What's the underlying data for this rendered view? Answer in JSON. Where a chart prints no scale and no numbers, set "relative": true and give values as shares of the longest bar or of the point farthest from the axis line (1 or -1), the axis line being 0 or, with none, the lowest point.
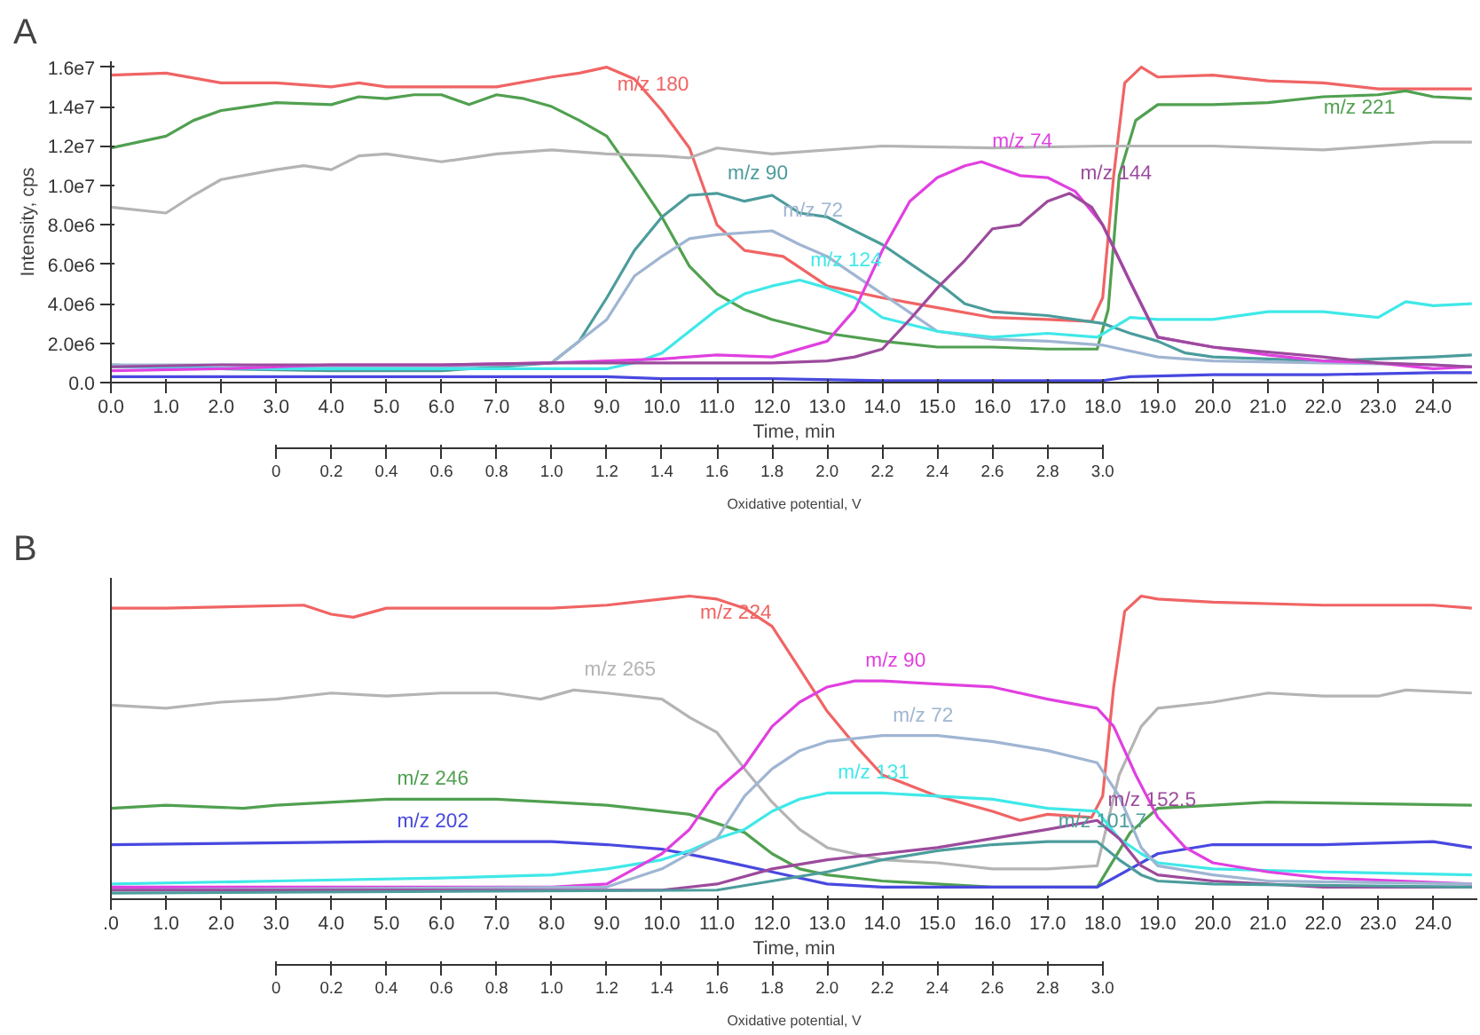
{
  "chart_data": [
    {
      "type": "line",
      "title": "A",
      "xlabel": "Time, min",
      "ylabel": "Intensity, cps",
      "x2label": "Oxidative potential, V",
      "xlim": [
        0,
        24.8
      ],
      "ylim": [
        0,
        16300000.0
      ],
      "x2lim": [
        -0.6,
        4.36
      ],
      "xticks": [
        {
          "value": 0,
          "label": "0.0"
        },
        {
          "value": 1,
          "label": "1.0"
        },
        {
          "value": 2,
          "label": "2.0"
        },
        {
          "value": 3,
          "label": "3.0"
        },
        {
          "value": 4,
          "label": "4.0"
        },
        {
          "value": 5,
          "label": "5.0"
        },
        {
          "value": 6,
          "label": "6.0"
        },
        {
          "value": 7,
          "label": "7.0"
        },
        {
          "value": 8,
          "label": "8.0"
        },
        {
          "value": 9,
          "label": "9.0"
        },
        {
          "value": 10,
          "label": "10.0"
        },
        {
          "value": 11,
          "label": "11.0"
        },
        {
          "value": 12,
          "label": "12.0"
        },
        {
          "value": 13,
          "label": "13.0"
        },
        {
          "value": 14,
          "label": "14.0"
        },
        {
          "value": 15,
          "label": "15.0"
        },
        {
          "value": 16,
          "label": "16.0"
        },
        {
          "value": 17,
          "label": "17.0"
        },
        {
          "value": 18,
          "label": "18.0"
        },
        {
          "value": 19,
          "label": "19.0"
        },
        {
          "value": 20,
          "label": "20.0"
        },
        {
          "value": 21,
          "label": "21.0"
        },
        {
          "value": 22,
          "label": "22.0"
        },
        {
          "value": 23,
          "label": "23.0"
        },
        {
          "value": 24,
          "label": "24.0"
        }
      ],
      "x2ticks": [
        0,
        0.2,
        0.4,
        0.6,
        0.8,
        {
          "value": 1,
          "label": "1.0"
        },
        1.2,
        1.4,
        1.6,
        1.8,
        {
          "value": 2,
          "label": "2.0"
        },
        2.2,
        2.4,
        2.6,
        2.8,
        {
          "value": 3,
          "label": "3.0"
        }
      ],
      "yticks": [
        {
          "value": 0,
          "label": "0.0"
        },
        {
          "value": 2000000.0,
          "label": "2.0e6"
        },
        {
          "value": 4000000.0,
          "label": "4.0e6"
        },
        {
          "value": 6000000.0,
          "label": "6.0e6"
        },
        {
          "value": 8000000.0,
          "label": "8.0e6"
        },
        {
          "value": 10000000.0,
          "label": "1.0e7"
        },
        {
          "value": 12000000.0,
          "label": "1.2e7"
        },
        {
          "value": 14000000.0,
          "label": "1.4e7"
        },
        {
          "value": 16000000.0,
          "label": "1.6e7"
        }
      ],
      "series": [
        {
          "name": "m/z 180",
          "color": "#f06464",
          "x": [
            0,
            1,
            2,
            3,
            4,
            4.5,
            5,
            6,
            7,
            8,
            8.5,
            9,
            9.5,
            10,
            10.5,
            11,
            11.5,
            12.2,
            13,
            14,
            15,
            16,
            17,
            17.8,
            18,
            18.2,
            18.4,
            18.7,
            19,
            20,
            21,
            22,
            23,
            24,
            24.7
          ],
          "values": [
            15600000.0,
            15700000.0,
            15200000.0,
            15200000.0,
            15000000.0,
            15200000.0,
            15000000.0,
            15000000.0,
            15000000.0,
            15500000.0,
            15700000.0,
            16000000.0,
            15400000.0,
            13800000.0,
            11900000.0,
            8000000.0,
            6700000.0,
            6400000.0,
            4900000.0,
            4300000.0,
            3800000.0,
            3300000.0,
            3200000.0,
            3100000.0,
            4300000.0,
            10500000.0,
            15200000.0,
            16000000.0,
            15500000.0,
            15600000.0,
            15300000.0,
            15200000.0,
            14900000.0,
            14900000.0,
            14900000.0
          ]
        },
        {
          "name": "m/z 221",
          "color": "#50a050",
          "x": [
            0,
            1,
            1.5,
            2,
            3,
            4,
            4.5,
            5,
            5.5,
            6,
            6.5,
            7,
            7.5,
            8,
            8.5,
            9,
            9.5,
            10,
            10.5,
            11,
            11.5,
            12,
            13,
            14,
            15,
            16,
            17,
            17.9,
            18.1,
            18.3,
            18.6,
            19,
            20,
            21,
            22,
            23,
            23.5,
            24,
            24.7
          ],
          "values": [
            11900000.0,
            12500000.0,
            13300000.0,
            13800000.0,
            14200000.0,
            14100000.0,
            14500000.0,
            14400000.0,
            14600000.0,
            14600000.0,
            14100000.0,
            14600000.0,
            14400000.0,
            14000000.0,
            13300000.0,
            12500000.0,
            10500000.0,
            8400000.0,
            5900000.0,
            4500000.0,
            3700000.0,
            3200000.0,
            2500000.0,
            2100000.0,
            1800000.0,
            1800000.0,
            1700000.0,
            1700000.0,
            3700000.0,
            10500000.0,
            13300000.0,
            14100000.0,
            14100000.0,
            14200000.0,
            14500000.0,
            14600000.0,
            14800000.0,
            14500000.0,
            14400000.0
          ]
        },
        {
          "color": "#b4b4b4",
          "x": [
            0,
            1,
            1.5,
            2,
            3,
            3.5,
            4,
            4.5,
            5,
            5.5,
            6,
            7,
            8,
            9,
            10,
            10.5,
            11,
            12,
            14,
            16,
            18,
            20,
            22,
            24,
            24.7
          ],
          "values": [
            8900000.0,
            8600000.0,
            9500000.0,
            10300000.0,
            10800000.0,
            11000000.0,
            10800000.0,
            11500000.0,
            11600000.0,
            11400000.0,
            11200000.0,
            11600000.0,
            11800000.0,
            11600000.0,
            11500000.0,
            11400000.0,
            11900000.0,
            11600000.0,
            12000000.0,
            11900000.0,
            12000000.0,
            12000000.0,
            11800000.0,
            12200000.0,
            12200000.0
          ]
        },
        {
          "name": "m/z 90",
          "color": "#4c9c9c",
          "x": [
            0,
            2,
            4,
            6,
            8,
            8.5,
            9,
            9.5,
            10,
            10.5,
            11,
            11.5,
            12,
            12.5,
            13,
            14,
            15,
            15.5,
            16,
            17,
            18,
            18.5,
            19,
            19.5,
            20,
            22,
            24,
            24.7
          ],
          "values": [
            900000.0,
            700000.0,
            600000.0,
            600000.0,
            1000000.0,
            2100000.0,
            4300000.0,
            6700000.0,
            8400000.0,
            9500000.0,
            9600000.0,
            9200000.0,
            9500000.0,
            8600000.0,
            8400000.0,
            7000000.0,
            5100000.0,
            4000000.0,
            3600000.0,
            3400000.0,
            3000000.0,
            2500000.0,
            2100000.0,
            1500000.0,
            1300000.0,
            1100000.0,
            1300000.0,
            1400000.0
          ]
        },
        {
          "name": "m/z 72",
          "color": "#9fb5d2",
          "x": [
            0,
            2,
            4,
            6,
            8,
            9,
            9.5,
            10,
            10.5,
            11,
            12,
            12.5,
            13,
            14,
            15,
            16,
            17,
            18,
            19,
            20,
            22,
            24,
            24.7
          ],
          "values": [
            900000.0,
            900000.0,
            800000.0,
            800000.0,
            1000000.0,
            3200000.0,
            5400000.0,
            6400000.0,
            7300000.0,
            7500000.0,
            7700000.0,
            7000000.0,
            6400000.0,
            4500000.0,
            2600000.0,
            2200000.0,
            2100000.0,
            1900000.0,
            1300000.0,
            1100000.0,
            1000000.0,
            900000.0,
            800000.0
          ]
        },
        {
          "name": "m/z 124",
          "color": "#40e8e8",
          "x": [
            0,
            3,
            6,
            9,
            9.5,
            10,
            10.5,
            11,
            11.5,
            12,
            12.5,
            13,
            13.5,
            14,
            15,
            16,
            17,
            17.9,
            18.5,
            19,
            20,
            21,
            22,
            23,
            23.5,
            24,
            24.7
          ],
          "values": [
            800000.0,
            700000.0,
            700000.0,
            700000.0,
            1000000.0,
            1500000.0,
            2600000.0,
            3700000.0,
            4500000.0,
            4900000.0,
            5200000.0,
            4800000.0,
            4300000.0,
            3300000.0,
            2600000.0,
            2300000.0,
            2500000.0,
            2300000.0,
            3300000.0,
            3200000.0,
            3200000.0,
            3600000.0,
            3600000.0,
            3300000.0,
            4100000.0,
            3900000.0,
            4000000.0
          ]
        },
        {
          "name": "m/z 74",
          "color": "#e040e0",
          "x": [
            0,
            2,
            4,
            6,
            8,
            10,
            11,
            12,
            13,
            13.5,
            14,
            14.5,
            15,
            15.5,
            15.8,
            16.5,
            17,
            17.5,
            18,
            18.5,
            19,
            20,
            21,
            22,
            23,
            24,
            24.7
          ],
          "values": [
            600000.0,
            700000.0,
            900000.0,
            900000.0,
            1000000.0,
            1200000.0,
            1400000.0,
            1300000.0,
            2100000.0,
            3700000.0,
            6700000.0,
            9200000.0,
            10400000.0,
            11000000.0,
            11200000.0,
            10500000.0,
            10400000.0,
            9700000.0,
            8000000.0,
            5100000.0,
            2300000.0,
            1800000.0,
            1400000.0,
            1100000.0,
            1000000.0,
            700000.0,
            800000.0
          ]
        },
        {
          "name": "m/z 144",
          "color": "#9c4a9c",
          "x": [
            0,
            2,
            4,
            6,
            8,
            10,
            12,
            13,
            13.5,
            14,
            14.5,
            15,
            15.5,
            16,
            16.5,
            17,
            17.4,
            17.8,
            18,
            18.5,
            19,
            20,
            22,
            23,
            24,
            24.7
          ],
          "values": [
            800000.0,
            900000.0,
            900000.0,
            900000.0,
            1000000.0,
            1000000.0,
            1000000.0,
            1100000.0,
            1300000.0,
            1700000.0,
            3200000.0,
            4800000.0,
            6200000.0,
            7800000.0,
            8000000.0,
            9200000.0,
            9600000.0,
            8900000.0,
            8000000.0,
            5100000.0,
            2300000.0,
            1800000.0,
            1300000.0,
            1000000.0,
            900000.0,
            800000.0
          ]
        },
        {
          "color": "#4848e0",
          "x": [
            0,
            4,
            8,
            9,
            10,
            12,
            14,
            16,
            18,
            18.5,
            20,
            22,
            24,
            24.7
          ],
          "values": [
            300000.0,
            300000.0,
            300000.0,
            300000.0,
            200000.0,
            200000.0,
            100000.0,
            100000.0,
            100000.0,
            300000.0,
            400000.0,
            400000.0,
            500000.0,
            500000.0
          ]
        }
      ]
    },
    {
      "type": "line",
      "title": "B",
      "xlabel": "Time, min",
      "x2label": "Oxidative potential, V",
      "relative": true,
      "tick_labels": "x",
      "xlim": [
        0,
        24.8
      ],
      "x2lim": [
        -0.6,
        4.36
      ],
      "xticks": [
        {
          "value": 0,
          "label": ".0"
        },
        {
          "value": 1,
          "label": "1.0"
        },
        {
          "value": 2,
          "label": "2.0"
        },
        {
          "value": 3,
          "label": "3.0"
        },
        {
          "value": 4,
          "label": "4.0"
        },
        {
          "value": 5,
          "label": "5.0"
        },
        {
          "value": 6,
          "label": "6.0"
        },
        {
          "value": 7,
          "label": "7.0"
        },
        {
          "value": 8,
          "label": "8.0"
        },
        {
          "value": 9,
          "label": "9.0"
        },
        {
          "value": 10,
          "label": "10.0"
        },
        {
          "value": 11,
          "label": "11.0"
        },
        {
          "value": 12,
          "label": "12.0"
        },
        {
          "value": 13,
          "label": "13.0"
        },
        {
          "value": 14,
          "label": "14.0"
        },
        {
          "value": 15,
          "label": "15.0"
        },
        {
          "value": 16,
          "label": "16.0"
        },
        {
          "value": 17,
          "label": "17.0"
        },
        {
          "value": 18,
          "label": "18.0"
        },
        {
          "value": 19,
          "label": "19.0"
        },
        {
          "value": 20,
          "label": "20.0"
        },
        {
          "value": 21,
          "label": "21.0"
        },
        {
          "value": 22,
          "label": "22.0"
        },
        {
          "value": 23,
          "label": "23.0"
        },
        {
          "value": 24,
          "label": "24.0"
        }
      ],
      "x2ticks": [
        0,
        0.2,
        0.4,
        0.6,
        0.8,
        {
          "value": 1,
          "label": "1.0"
        },
        1.2,
        1.4,
        1.6,
        1.8,
        {
          "value": 2,
          "label": "2.0"
        },
        2.2,
        2.4,
        2.6,
        2.8,
        {
          "value": 3,
          "label": "3.0"
        }
      ],
      "series": [
        {
          "name": "m/z 224",
          "color": "#f06464",
          "x": [
            0,
            1,
            3.5,
            4,
            4.4,
            5,
            8,
            9,
            10,
            10.5,
            11,
            11.5,
            12,
            12.5,
            13,
            13.5,
            14,
            15,
            16,
            16.5,
            17,
            17.8,
            18,
            18.2,
            18.4,
            18.7,
            19,
            20,
            22,
            24,
            24.7
          ],
          "values": [
            0.96,
            0.96,
            0.97,
            0.94,
            0.93,
            0.96,
            0.96,
            0.97,
            0.99,
            1.0,
            0.99,
            0.96,
            0.9,
            0.76,
            0.62,
            0.51,
            0.41,
            0.34,
            0.29,
            0.26,
            0.28,
            0.27,
            0.34,
            0.7,
            0.95,
            1.0,
            0.99,
            0.98,
            0.97,
            0.97,
            0.96
          ]
        },
        {
          "name": "m/z 265",
          "color": "#b4b4b4",
          "x": [
            0,
            1,
            2,
            3,
            4,
            5,
            6,
            7,
            7.8,
            8.4,
            9,
            10,
            10.5,
            11,
            11.5,
            12,
            12.5,
            13,
            14,
            15,
            16,
            17,
            17.9,
            18.3,
            18.7,
            19,
            20,
            21,
            22,
            23,
            23.5,
            24.7
          ],
          "values": [
            0.64,
            0.63,
            0.65,
            0.66,
            0.68,
            0.67,
            0.68,
            0.68,
            0.66,
            0.69,
            0.68,
            0.66,
            0.6,
            0.55,
            0.43,
            0.32,
            0.23,
            0.17,
            0.13,
            0.12,
            0.1,
            0.1,
            0.11,
            0.41,
            0.57,
            0.63,
            0.65,
            0.68,
            0.67,
            0.67,
            0.69,
            0.68
          ]
        },
        {
          "name": "m/z 246",
          "color": "#50a050",
          "x": [
            0,
            1,
            2.4,
            3,
            5,
            7,
            8,
            9,
            10,
            10.5,
            11,
            11.5,
            12,
            12.5,
            13,
            14,
            16,
            17.9,
            18.5,
            19,
            20,
            21,
            24.7
          ],
          "values": [
            0.3,
            0.31,
            0.3,
            0.31,
            0.33,
            0.33,
            0.32,
            0.31,
            0.29,
            0.28,
            0.25,
            0.22,
            0.15,
            0.1,
            0.08,
            0.06,
            0.04,
            0.04,
            0.22,
            0.3,
            0.31,
            0.32,
            0.31
          ]
        },
        {
          "name": "m/z 202",
          "color": "#4848e0",
          "x": [
            0,
            5,
            6,
            8,
            9,
            10,
            11,
            11.5,
            12,
            13,
            14,
            17.9,
            18.5,
            19,
            20,
            22,
            24,
            24.7
          ],
          "values": [
            0.18,
            0.19,
            0.19,
            0.19,
            0.18,
            0.165,
            0.13,
            0.11,
            0.09,
            0.05,
            0.04,
            0.04,
            0.1,
            0.15,
            0.18,
            0.18,
            0.19,
            0.17
          ]
        },
        {
          "name": "m/z 131",
          "color": "#40e8e8",
          "x": [
            0,
            3,
            6,
            8,
            9,
            10,
            10.5,
            11,
            11.5,
            12,
            12.5,
            13,
            14,
            15,
            16,
            17,
            17.9,
            18.3,
            18.7,
            19,
            20,
            22,
            24.7
          ],
          "values": [
            0.05,
            0.06,
            0.07,
            0.08,
            0.1,
            0.13,
            0.16,
            0.2,
            0.23,
            0.29,
            0.33,
            0.35,
            0.35,
            0.34,
            0.33,
            0.3,
            0.29,
            0.2,
            0.15,
            0.12,
            0.1,
            0.09,
            0.08
          ]
        },
        {
          "name": "m/z 90",
          "color": "#e040e0",
          "x": [
            0,
            8,
            9,
            9.5,
            10,
            10.5,
            11,
            11.5,
            12,
            12.5,
            13,
            13.5,
            14,
            15,
            16,
            17,
            17.9,
            18.2,
            18.6,
            19,
            19.5,
            20,
            21,
            22,
            24.7
          ],
          "values": [
            0.04,
            0.04,
            0.05,
            0.1,
            0.15,
            0.23,
            0.36,
            0.44,
            0.57,
            0.65,
            0.7,
            0.72,
            0.72,
            0.71,
            0.7,
            0.66,
            0.63,
            0.57,
            0.41,
            0.27,
            0.17,
            0.12,
            0.09,
            0.07,
            0.05
          ]
        },
        {
          "name": "m/z 72",
          "color": "#9fb5d2",
          "x": [
            0,
            9,
            10,
            11,
            11.5,
            12,
            12.5,
            13,
            14,
            15,
            16,
            17,
            17.9,
            18.3,
            18.7,
            19,
            20,
            21,
            24.7
          ],
          "values": [
            0.03,
            0.04,
            0.1,
            0.2,
            0.34,
            0.43,
            0.49,
            0.52,
            0.54,
            0.54,
            0.52,
            0.49,
            0.45,
            0.34,
            0.17,
            0.11,
            0.08,
            0.06,
            0.05
          ]
        },
        {
          "name": "m/z 152.5",
          "color": "#9c4a9c",
          "x": [
            0,
            10,
            11,
            12,
            13,
            14,
            15,
            16,
            17,
            17.9,
            18.3,
            18.7,
            19,
            20,
            22,
            24.7
          ],
          "values": [
            0.03,
            0.03,
            0.05,
            0.1,
            0.13,
            0.15,
            0.17,
            0.2,
            0.23,
            0.26,
            0.2,
            0.11,
            0.08,
            0.06,
            0.04,
            0.04
          ]
        },
        {
          "name": "m/z 101.7",
          "color": "#4c9c9c",
          "x": [
            0,
            11,
            12,
            13,
            14,
            15,
            16,
            17,
            17.9,
            18.3,
            18.7,
            19,
            20,
            24.7
          ],
          "values": [
            0.02,
            0.03,
            0.06,
            0.09,
            0.13,
            0.16,
            0.18,
            0.19,
            0.19,
            0.13,
            0.08,
            0.06,
            0.05,
            0.04
          ]
        }
      ]
    }
  ]
}
